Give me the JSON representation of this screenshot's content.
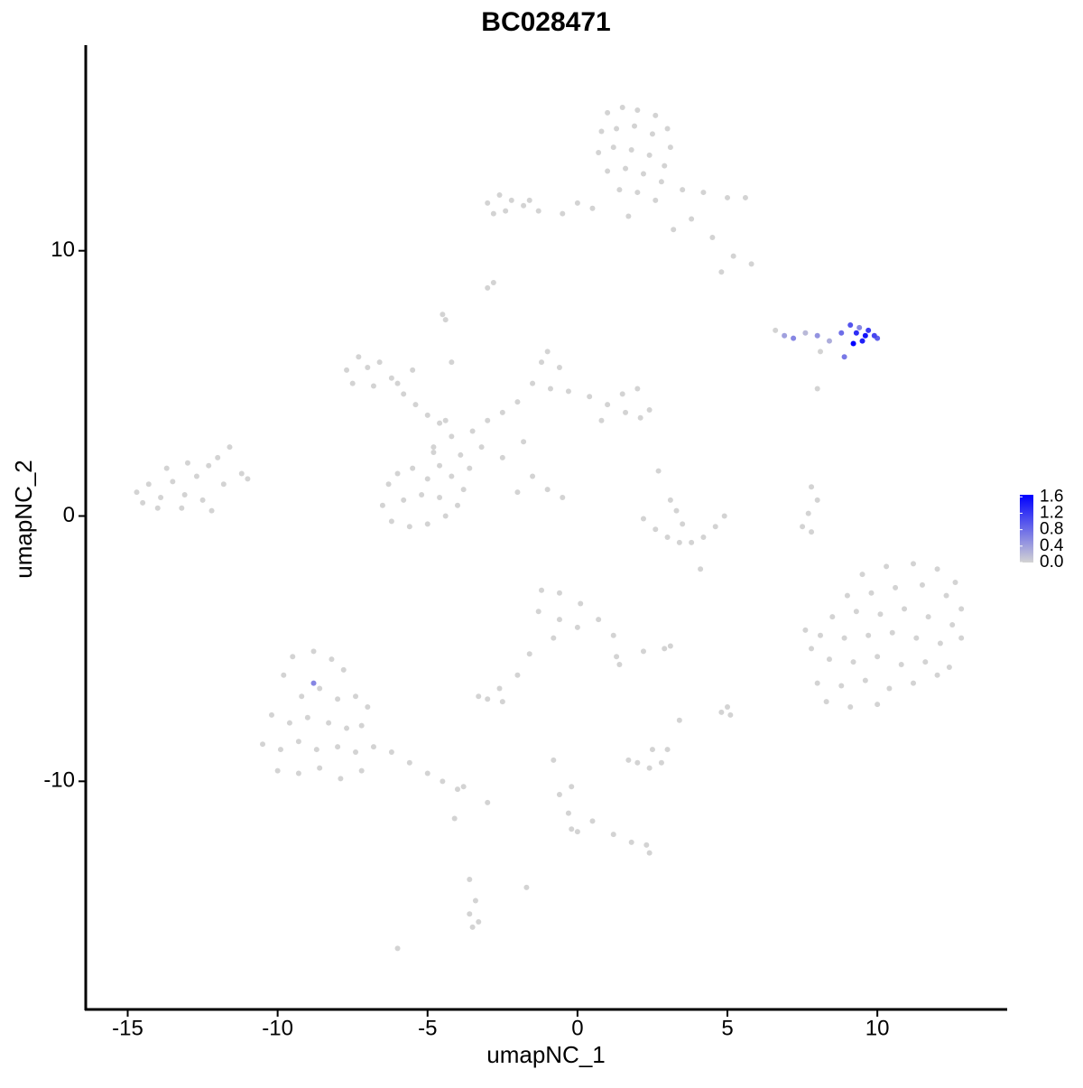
{
  "chart_data": {
    "type": "scatter",
    "title": "BC028471",
    "x_label": "umapNC_1",
    "y_label": "umapNC_2",
    "xlim": [
      -16.4,
      14.3
    ],
    "ylim": [
      -18.6,
      17.75
    ],
    "xticks": [
      -15,
      -10,
      -5,
      0,
      5,
      10
    ],
    "yticks": [
      -10,
      0,
      10
    ],
    "low_color": "#d3d3d3",
    "high_color": "#0000ff",
    "clim": [
      0,
      1.65
    ],
    "cticks": [
      {
        "value": 0,
        "label": "0.0"
      },
      {
        "value": 0.4,
        "label": "0.4"
      },
      {
        "value": 0.8,
        "label": "0.8"
      },
      {
        "value": 1.2,
        "label": "1.2"
      },
      {
        "value": 1.6,
        "label": "1.6"
      }
    ],
    "x": [
      1.0,
      1.5,
      2.0,
      2.6,
      3.0,
      0.8,
      1.3,
      1.9,
      2.5,
      3.1,
      0.7,
      1.2,
      1.8,
      2.4,
      2.9,
      1.0,
      1.6,
      2.2,
      2.8,
      1.4,
      2.0,
      2.6,
      3.5,
      4.2,
      5.0,
      5.6,
      3.8,
      4.5,
      5.2,
      5.8,
      4.8,
      0.5,
      -0.5,
      0.0,
      1.7,
      3.2,
      -3.0,
      -2.6,
      -2.2,
      -1.8,
      -1.3,
      -2.8,
      -2.4,
      -1.6,
      -2.8,
      -3.0,
      -4.5,
      -4.4,
      -7.7,
      -7.3,
      -7.0,
      -6.6,
      -6.2,
      -7.5,
      -6.8,
      -5.8,
      -5.4,
      -5.0,
      -4.6,
      -4.2,
      -4.8,
      -3.9,
      -3.5,
      -3.0,
      -2.5,
      -2.0,
      -1.5,
      -1.2,
      -1.0,
      -0.6,
      -0.9,
      -0.3,
      0.4,
      1.0,
      1.5,
      2.0,
      2.4,
      2.1,
      1.6,
      0.8,
      -1.8,
      -2.5,
      -3.2,
      -1.5,
      -1.0,
      -0.5,
      -2.0,
      -4.4,
      -5.5,
      -6.0,
      -4.2,
      -6.3,
      -6.0,
      -5.5,
      -5.0,
      -4.6,
      -4.2,
      -3.8,
      -4.0,
      -4.4,
      -5.0,
      -5.6,
      -6.2,
      -6.5,
      -5.8,
      -5.2,
      -4.6,
      -4.8,
      -3.6,
      -14.7,
      -14.3,
      -13.9,
      -13.5,
      -13.1,
      -12.7,
      -12.3,
      -12.0,
      -11.6,
      -11.2,
      -11.8,
      -12.5,
      -13.2,
      -14.0,
      -13.7,
      -13.0,
      -12.2,
      -14.5,
      -11.0,
      2.2,
      2.6,
      3.0,
      3.4,
      3.8,
      4.2,
      4.6,
      4.9,
      3.1,
      3.3,
      3.5,
      2.7,
      4.1,
      7.8,
      8.0,
      7.7,
      7.5,
      7.8,
      8.0,
      9.5,
      10.3,
      11.2,
      12.0,
      12.6,
      9.0,
      9.8,
      10.6,
      11.5,
      12.3,
      12.8,
      8.5,
      9.3,
      10.1,
      10.9,
      11.7,
      12.5,
      8.1,
      8.9,
      9.7,
      10.5,
      11.3,
      12.1,
      12.8,
      8.4,
      9.2,
      10.0,
      10.8,
      11.6,
      12.4,
      8.0,
      8.8,
      9.6,
      10.4,
      11.2,
      12.0,
      8.3,
      9.1,
      10.0,
      7.8,
      7.6,
      -1.2,
      -0.6,
      0.1,
      0.7,
      1.2,
      1.3,
      -1.3,
      -0.6,
      0.0,
      -0.8,
      -1.6,
      -2.0,
      -2.6,
      1.4,
      -3.0,
      -2.5,
      -3.3,
      2.9,
      3.1,
      2.2,
      5.0,
      5.1,
      4.8,
      3.4,
      2.0,
      2.4,
      2.8,
      3.0,
      2.5,
      1.7,
      -0.8,
      -0.6,
      -0.3,
      -0.2,
      0.0,
      0.5,
      1.2,
      1.8,
      2.3,
      2.4,
      -0.2,
      -9.8,
      -9.5,
      -8.8,
      -8.2,
      -7.8,
      -9.2,
      -8.6,
      -8.0,
      -7.4,
      -7.0,
      -10.2,
      -9.6,
      -9.0,
      -8.3,
      -7.7,
      -7.2,
      -10.5,
      -9.9,
      -9.3,
      -8.7,
      -8.0,
      -7.4,
      -6.8,
      -6.2,
      -5.6,
      -5.0,
      -4.5,
      -4.0,
      -3.8,
      -10.0,
      -9.3,
      -8.6,
      -7.9,
      -7.2,
      -4.1,
      -3.6,
      -3.4,
      -3.6,
      -3.3,
      -3.5,
      -1.7,
      -6.0,
      -3.0,
      6.6,
      6.9,
      7.2,
      7.6,
      8.0,
      8.4,
      8.8,
      9.1,
      9.3,
      9.5,
      9.7,
      9.9,
      9.2,
      9.6,
      8.1,
      8.9,
      10.0,
      9.4,
      -8.8
    ],
    "y": [
      15.2,
      15.4,
      15.3,
      15.1,
      14.6,
      14.5,
      14.6,
      14.7,
      14.4,
      13.9,
      13.7,
      13.9,
      13.8,
      13.6,
      13.2,
      13.0,
      13.1,
      12.9,
      12.6,
      12.3,
      12.2,
      11.9,
      12.3,
      12.2,
      12.0,
      12.0,
      11.2,
      10.5,
      9.8,
      9.5,
      9.2,
      11.6,
      11.4,
      11.8,
      11.3,
      10.8,
      11.8,
      12.1,
      11.9,
      11.7,
      11.5,
      11.4,
      11.5,
      11.9,
      8.8,
      8.6,
      7.6,
      7.4,
      5.5,
      6.0,
      5.6,
      5.8,
      5.2,
      5.0,
      4.9,
      4.6,
      4.2,
      3.8,
      3.5,
      3.0,
      2.6,
      2.3,
      3.2,
      3.6,
      3.9,
      4.3,
      5.0,
      5.8,
      6.2,
      5.6,
      4.8,
      4.7,
      4.5,
      4.2,
      4.6,
      4.8,
      4.0,
      3.7,
      3.9,
      3.6,
      2.8,
      2.2,
      2.6,
      1.5,
      1.0,
      0.7,
      0.9,
      3.6,
      5.5,
      5.0,
      5.8,
      1.2,
      1.6,
      1.8,
      1.4,
      1.9,
      1.5,
      1.0,
      0.4,
      0.0,
      -0.3,
      -0.4,
      -0.2,
      0.4,
      0.6,
      0.8,
      0.7,
      2.4,
      1.8,
      0.9,
      1.2,
      0.7,
      1.3,
      0.8,
      1.5,
      1.9,
      2.2,
      2.6,
      1.6,
      1.2,
      0.6,
      0.3,
      0.3,
      1.8,
      2.0,
      0.2,
      0.5,
      1.4,
      -0.1,
      -0.5,
      -0.8,
      -1.0,
      -1.0,
      -0.8,
      -0.4,
      0.0,
      0.6,
      0.2,
      -0.3,
      1.7,
      -2.0,
      1.1,
      0.6,
      0.1,
      -0.4,
      -0.6,
      4.8,
      -2.2,
      -1.9,
      -1.8,
      -2.0,
      -2.5,
      -3.0,
      -2.9,
      -2.7,
      -2.6,
      -3.0,
      -3.5,
      -3.8,
      -3.6,
      -3.7,
      -3.5,
      -3.8,
      -4.1,
      -4.5,
      -4.6,
      -4.5,
      -4.4,
      -4.6,
      -4.8,
      -4.6,
      -5.4,
      -5.5,
      -5.3,
      -5.6,
      -5.5,
      -5.7,
      -6.3,
      -6.4,
      -6.2,
      -6.5,
      -6.3,
      -6.0,
      -7.0,
      -7.2,
      -7.1,
      -5.0,
      -4.3,
      -2.8,
      -2.9,
      -3.3,
      -3.9,
      -4.5,
      -5.3,
      -3.6,
      -3.9,
      -4.2,
      -4.6,
      -5.2,
      -6.0,
      -6.5,
      -5.6,
      -6.9,
      -7.0,
      -6.8,
      -5.0,
      -4.9,
      -5.1,
      -7.2,
      -7.5,
      -7.4,
      -7.7,
      -9.3,
      -9.5,
      -9.3,
      -8.8,
      -8.8,
      -9.2,
      -9.2,
      -10.5,
      -11.2,
      -11.8,
      -11.9,
      -11.5,
      -12.0,
      -12.3,
      -12.4,
      -12.7,
      -10.2,
      -6.0,
      -5.3,
      -5.1,
      -5.4,
      -5.8,
      -6.8,
      -6.5,
      -6.9,
      -6.8,
      -7.2,
      -7.5,
      -7.8,
      -7.6,
      -7.8,
      -8.0,
      -7.9,
      -8.6,
      -8.8,
      -8.5,
      -8.8,
      -8.7,
      -8.9,
      -8.7,
      -8.9,
      -9.3,
      -9.7,
      -10.0,
      -10.3,
      -10.2,
      -9.6,
      -9.7,
      -9.5,
      -9.9,
      -9.6,
      -11.4,
      -13.7,
      -14.5,
      -15.0,
      -15.3,
      -15.5,
      -14.0,
      -16.3,
      -10.8,
      7.0,
      6.8,
      6.7,
      6.9,
      6.8,
      6.6,
      6.9,
      7.2,
      6.9,
      6.6,
      7.0,
      6.8,
      6.5,
      6.8,
      6.2,
      6.0,
      6.7,
      7.1,
      -6.3
    ],
    "expression": [
      0,
      0,
      0,
      0,
      0,
      0,
      0,
      0,
      0,
      0,
      0,
      0,
      0,
      0,
      0,
      0,
      0,
      0,
      0,
      0,
      0,
      0,
      0,
      0,
      0,
      0,
      0,
      0,
      0,
      0,
      0,
      0,
      0,
      0,
      0,
      0,
      0,
      0,
      0,
      0,
      0,
      0,
      0,
      0,
      0,
      0,
      0,
      0,
      0,
      0,
      0,
      0,
      0,
      0,
      0,
      0,
      0,
      0,
      0,
      0,
      0,
      0,
      0,
      0,
      0,
      0,
      0,
      0,
      0,
      0,
      0,
      0,
      0,
      0,
      0,
      0,
      0,
      0,
      0,
      0,
      0,
      0,
      0,
      0,
      0,
      0,
      0,
      0,
      0,
      0,
      0,
      0,
      0,
      0,
      0,
      0,
      0,
      0,
      0,
      0,
      0,
      0,
      0,
      0,
      0,
      0,
      0,
      0,
      0,
      0,
      0,
      0,
      0,
      0,
      0,
      0,
      0,
      0,
      0,
      0,
      0,
      0,
      0,
      0,
      0,
      0,
      0,
      0,
      0,
      0,
      0,
      0,
      0,
      0,
      0,
      0,
      0,
      0,
      0,
      0,
      0,
      0,
      0,
      0,
      0,
      0,
      0,
      0,
      0,
      0,
      0,
      0,
      0,
      0,
      0,
      0,
      0,
      0,
      0,
      0,
      0,
      0,
      0,
      0,
      0,
      0,
      0,
      0,
      0,
      0,
      0,
      0,
      0,
      0,
      0,
      0,
      0,
      0,
      0,
      0,
      0,
      0,
      0,
      0,
      0,
      0,
      0,
      0,
      0,
      0,
      0,
      0,
      0,
      0,
      0,
      0,
      0,
      0,
      0,
      0,
      0,
      0,
      0,
      0,
      0,
      0,
      0,
      0,
      0,
      0,
      0,
      0,
      0,
      0,
      0,
      0,
      0,
      0,
      0,
      0,
      0,
      0,
      0,
      0,
      0,
      0,
      0,
      0,
      0,
      0,
      0,
      0,
      0,
      0,
      0,
      0,
      0,
      0,
      0,
      0,
      0,
      0,
      0,
      0,
      0,
      0,
      0,
      0,
      0,
      0,
      0,
      0,
      0,
      0,
      0,
      0,
      0,
      0,
      0,
      0,
      0,
      0,
      0,
      0,
      0,
      0,
      0,
      0,
      0,
      0,
      0,
      0,
      0,
      0.4,
      0.6,
      0.2,
      0.5,
      0.3,
      0.8,
      1.0,
      1.3,
      1.4,
      1.2,
      1.1,
      1.7,
      1.5,
      0,
      0.7,
      0.9,
      0.6,
      0.6
    ]
  }
}
